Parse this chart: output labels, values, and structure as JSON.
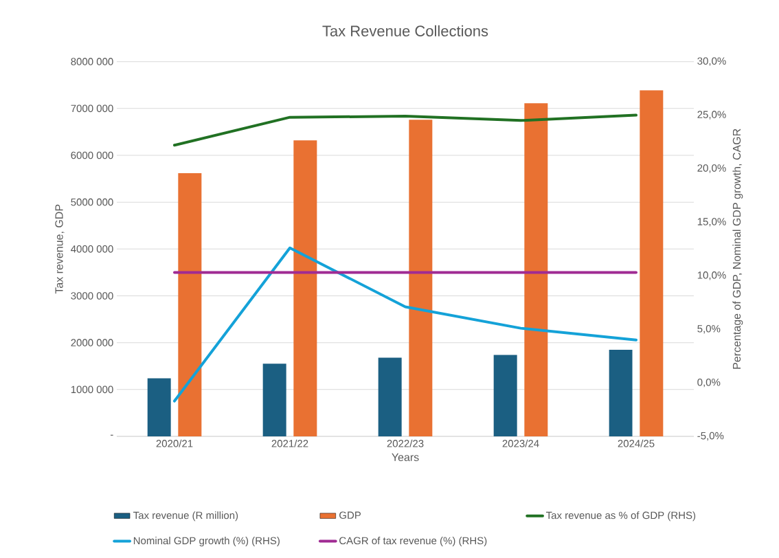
{
  "chart_data": {
    "type": "bar",
    "title": "Tax Revenue Collections",
    "xlabel": "Years",
    "ylabel": "Tax revenue, GDP",
    "y2label": "Percentage of GDP, Nominal GDP growth, CAGR",
    "categories": [
      "2020/21",
      "2021/22",
      "2022/23",
      "2023/24",
      "2024/25"
    ],
    "series": [
      {
        "name": "Tax revenue (R million)",
        "type": "bar",
        "color": "#1b5f82",
        "values": [
          1240000,
          1550000,
          1680000,
          1740000,
          1850000
        ]
      },
      {
        "name": "GDP",
        "type": "bar",
        "color": "#e97132",
        "values": [
          5620000,
          6320000,
          6760000,
          7110000,
          7390000
        ]
      },
      {
        "name": "Tax revenue as % of GDP (RHS)",
        "type": "line",
        "axis": "y2",
        "color": "#217123",
        "values": [
          22.2,
          24.8,
          24.9,
          24.5,
          25.0
        ]
      },
      {
        "name": "Nominal GDP growth (%) (RHS)",
        "type": "line",
        "axis": "y2",
        "color": "#14a2d8",
        "values": [
          -1.7,
          12.6,
          7.1,
          5.1,
          4.0
        ]
      },
      {
        "name": "CAGR of tax revenue (%) (RHS)",
        "type": "line",
        "axis": "y2",
        "color": "#a02b93",
        "values": [
          10.3,
          10.3,
          10.3,
          10.3,
          10.3
        ]
      }
    ],
    "ylim": [
      0,
      8000000
    ],
    "yticks": [
      {
        "value": 0,
        "label": "-"
      },
      {
        "value": 1000000,
        "label": "1000 000"
      },
      {
        "value": 2000000,
        "label": "2000 000"
      },
      {
        "value": 3000000,
        "label": "3000 000"
      },
      {
        "value": 4000000,
        "label": "4000 000"
      },
      {
        "value": 5000000,
        "label": "5000 000"
      },
      {
        "value": 6000000,
        "label": "6000 000"
      },
      {
        "value": 7000000,
        "label": "7000 000"
      },
      {
        "value": 8000000,
        "label": "8000 000"
      }
    ],
    "y2lim": [
      -5,
      30
    ],
    "y2ticks": [
      {
        "value": -5,
        "label": "-5,0%"
      },
      {
        "value": 0,
        "label": "0,0%"
      },
      {
        "value": 5,
        "label": "5,0%"
      },
      {
        "value": 10,
        "label": "10,0%"
      },
      {
        "value": 15,
        "label": "15,0%"
      },
      {
        "value": 20,
        "label": "20,0%"
      },
      {
        "value": 25,
        "label": "25,0%"
      },
      {
        "value": 30,
        "label": "30,0%"
      }
    ],
    "grid": "y",
    "legend": "bottom",
    "line_style": "solid"
  }
}
